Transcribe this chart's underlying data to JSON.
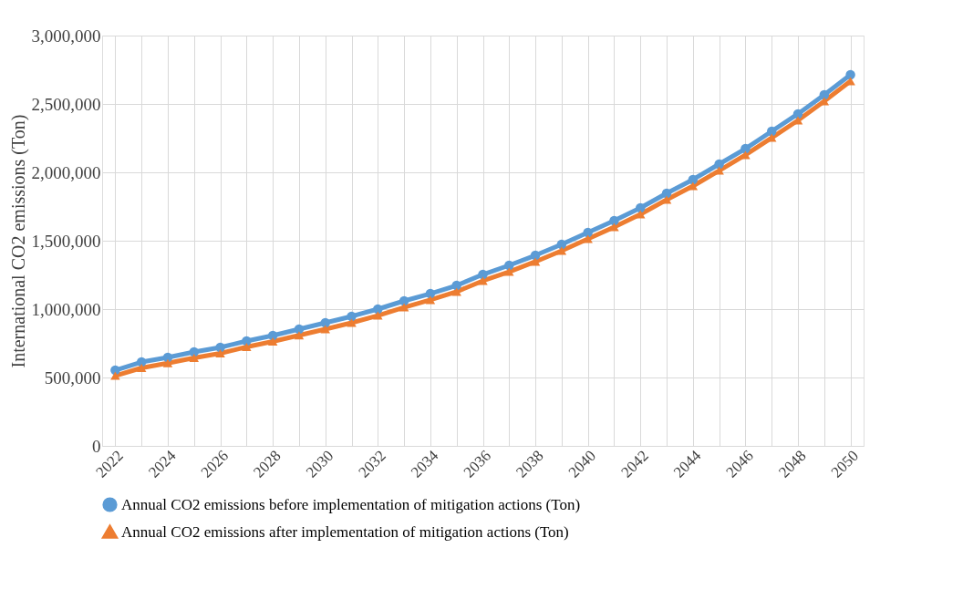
{
  "chart_data": {
    "type": "line",
    "ylabel": "International CO2 emissions (Ton)",
    "categories": [
      "2022",
      null,
      "2024",
      null,
      "2026",
      null,
      "2028",
      null,
      "2030",
      null,
      "2032",
      null,
      "2034",
      null,
      "2036",
      null,
      "2038",
      null,
      "2040",
      null,
      "2042",
      null,
      "2044",
      null,
      "2046",
      null,
      "2048",
      null,
      "2050"
    ],
    "series": [
      {
        "name": "Annual CO2 emissions before implementation of mitigation actions (Ton)",
        "color": "#5b9bd5",
        "marker": "circle",
        "values": [
          553000,
          613000,
          647000,
          687000,
          720000,
          767000,
          807000,
          853000,
          900000,
          947000,
          1000000,
          1060000,
          1113000,
          1173000,
          1253000,
          1320000,
          1393000,
          1473000,
          1560000,
          1647000,
          1740000,
          1847000,
          1947000,
          2060000,
          2173000,
          2300000,
          2427000,
          2567000,
          2713000
        ]
      },
      {
        "name": "Annual CO2 emissions after implementation of mitigation actions (Ton)",
        "color": "#ed7d31",
        "marker": "triangle",
        "values": [
          513000,
          570000,
          605000,
          643000,
          677000,
          723000,
          763000,
          808000,
          853000,
          900000,
          953000,
          1013000,
          1067000,
          1127000,
          1207000,
          1273000,
          1347000,
          1427000,
          1513000,
          1600000,
          1693000,
          1800000,
          1900000,
          2013000,
          2127000,
          2253000,
          2380000,
          2520000,
          2667000
        ]
      }
    ],
    "ylim": [
      0,
      3000000
    ],
    "yticks": [
      0,
      {
        "value": 500000,
        "label": "500,000"
      },
      {
        "value": 1000000,
        "label": "1,000,000"
      },
      {
        "value": 1500000,
        "label": "1,500,000"
      },
      {
        "value": 2000000,
        "label": "2,000,000"
      },
      {
        "value": 2500000,
        "label": "2,500,000"
      },
      {
        "value": 3000000,
        "label": "3,000,000"
      }
    ],
    "grid": true,
    "legend": "bottom",
    "line_style": "solid"
  }
}
